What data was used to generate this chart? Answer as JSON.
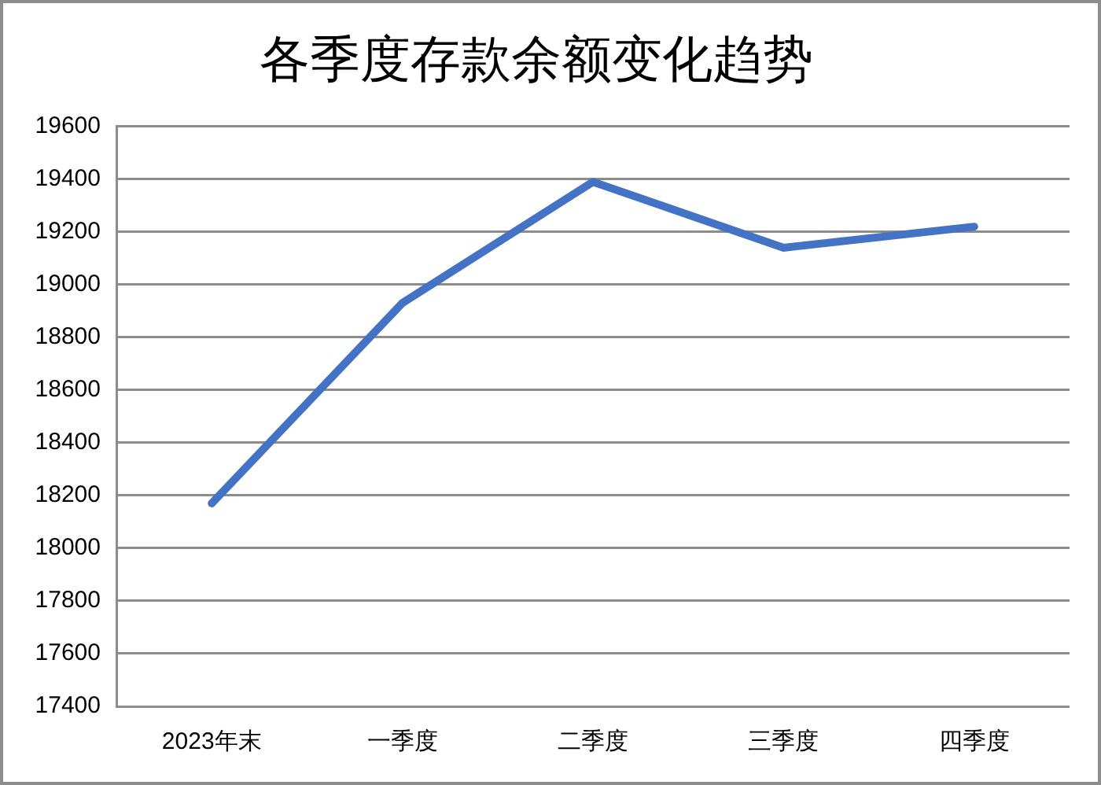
{
  "chart_data": {
    "type": "line",
    "title": "各季度存款余额变化趋势",
    "categories": [
      "2023年末",
      "一季度",
      "二季度",
      "三季度",
      "四季度"
    ],
    "series": [
      {
        "color": "#4472c4",
        "values": [
          18170,
          18930,
          19390,
          19140,
          19220
        ]
      }
    ],
    "ylim": [
      17400,
      19600
    ],
    "yticks": [
      17400,
      17600,
      17800,
      18000,
      18200,
      18400,
      18600,
      18800,
      19000,
      19200,
      19400,
      19600
    ],
    "grid": "y",
    "marker": "none",
    "line_style": "solid"
  }
}
